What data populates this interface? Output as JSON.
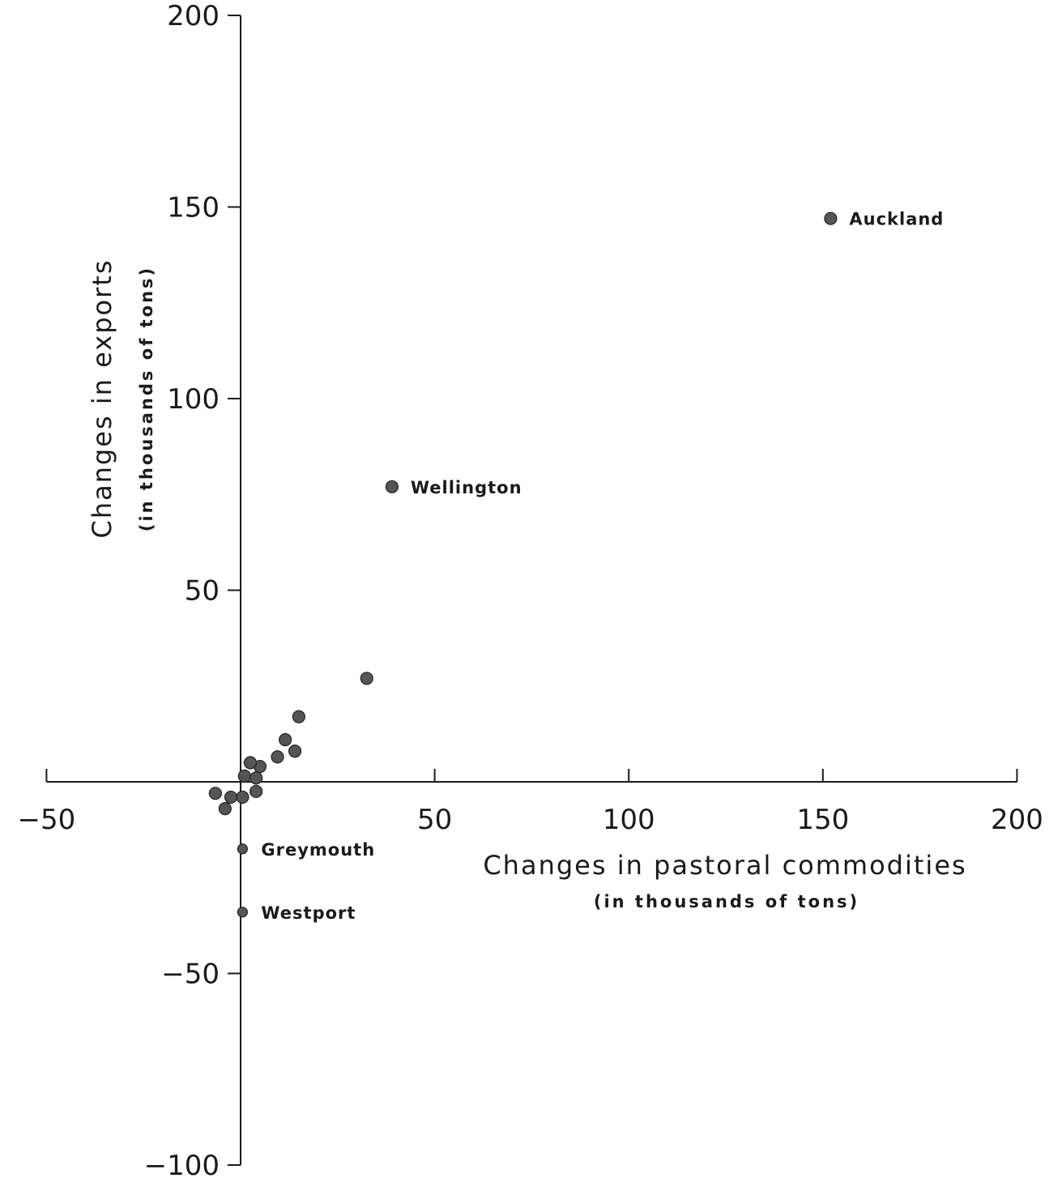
{
  "chart_data": {
    "type": "scatter",
    "title": "",
    "xlabel": "Changes in pastoral commodities",
    "xlabel_sub": "(in thousands of tons)",
    "ylabel": "Changes in exports",
    "ylabel_sub": "(in thousands of tons)",
    "xlim": [
      -50,
      200
    ],
    "ylim": [
      -100,
      200
    ],
    "x_ticks": [
      -50,
      0,
      50,
      100,
      150,
      200
    ],
    "x_tick_labels": [
      "−50",
      "",
      "50",
      "100",
      "150",
      "200"
    ],
    "y_ticks": [
      -100,
      -50,
      0,
      50,
      100,
      150,
      200
    ],
    "y_tick_labels": [
      "−100",
      "−50",
      "",
      "50",
      "100",
      "150",
      "200"
    ],
    "grid": false,
    "point_color": "#555555",
    "points": [
      {
        "x": 152,
        "y": 147,
        "label": "Auckland"
      },
      {
        "x": 39,
        "y": 77,
        "label": "Wellington"
      },
      {
        "x": 32.5,
        "y": 27,
        "label": ""
      },
      {
        "x": 15,
        "y": 17,
        "label": ""
      },
      {
        "x": 11.5,
        "y": 11,
        "label": ""
      },
      {
        "x": 14,
        "y": 8,
        "label": ""
      },
      {
        "x": 9.5,
        "y": 6.5,
        "label": ""
      },
      {
        "x": 5,
        "y": 4,
        "label": ""
      },
      {
        "x": 2.5,
        "y": 5,
        "label": ""
      },
      {
        "x": 1,
        "y": 1.5,
        "label": ""
      },
      {
        "x": 4,
        "y": 1,
        "label": ""
      },
      {
        "x": 4,
        "y": -2.5,
        "label": ""
      },
      {
        "x": -2.5,
        "y": -4,
        "label": ""
      },
      {
        "x": -6.5,
        "y": -3,
        "label": ""
      },
      {
        "x": 0.5,
        "y": -4,
        "label": ""
      },
      {
        "x": -4,
        "y": -7,
        "label": ""
      },
      {
        "x": 0.5,
        "y": -17.5,
        "label": "Greymouth"
      },
      {
        "x": 0.5,
        "y": -34,
        "label": "Westport"
      }
    ]
  }
}
